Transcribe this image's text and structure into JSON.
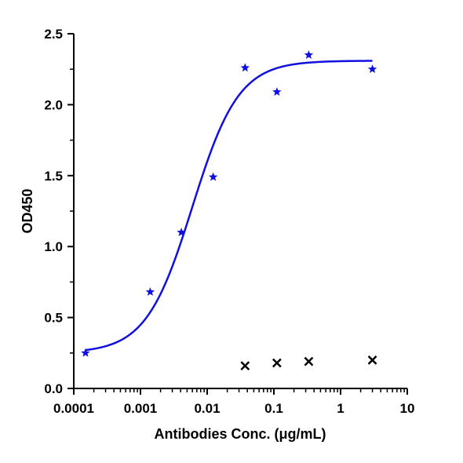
{
  "chart_data": {
    "type": "scatter",
    "xlabel": "Antibodies Conc. (μg/mL)",
    "ylabel": "OD450",
    "xscale": "log",
    "xlim": [
      0.0001,
      10
    ],
    "ylim": [
      0,
      2.5
    ],
    "x_ticks": [
      0.0001,
      0.001,
      0.01,
      0.1,
      1,
      10
    ],
    "x_tick_labels": [
      "0.0001",
      "0.001",
      "0.01",
      "0.1",
      "1",
      "10"
    ],
    "y_ticks": [
      0,
      0.5,
      1.0,
      1.5,
      2.0,
      2.5
    ],
    "y_tick_labels": [
      "0.0",
      "0.5",
      "1.0",
      "1.5",
      "2.0",
      "2.5"
    ],
    "grid": false,
    "legend": "none",
    "series": [
      {
        "marker": "star",
        "color": "#1010e0",
        "x": [
          0.00015,
          0.0014,
          0.0041,
          0.0123,
          0.037,
          0.111,
          0.333,
          3.0
        ],
        "y": [
          0.25,
          0.68,
          1.1,
          1.49,
          2.26,
          2.09,
          2.35,
          2.25
        ],
        "fit": {
          "model": "4PL",
          "bottom": 0.25,
          "top": 2.31,
          "ec50": 0.006,
          "hill": 1.25,
          "x_range": [
            0.00015,
            3.0
          ]
        }
      },
      {
        "marker": "x",
        "color": "#000000",
        "x": [
          0.037,
          0.111,
          0.333,
          3.0
        ],
        "y": [
          0.16,
          0.18,
          0.19,
          0.2
        ]
      }
    ]
  }
}
